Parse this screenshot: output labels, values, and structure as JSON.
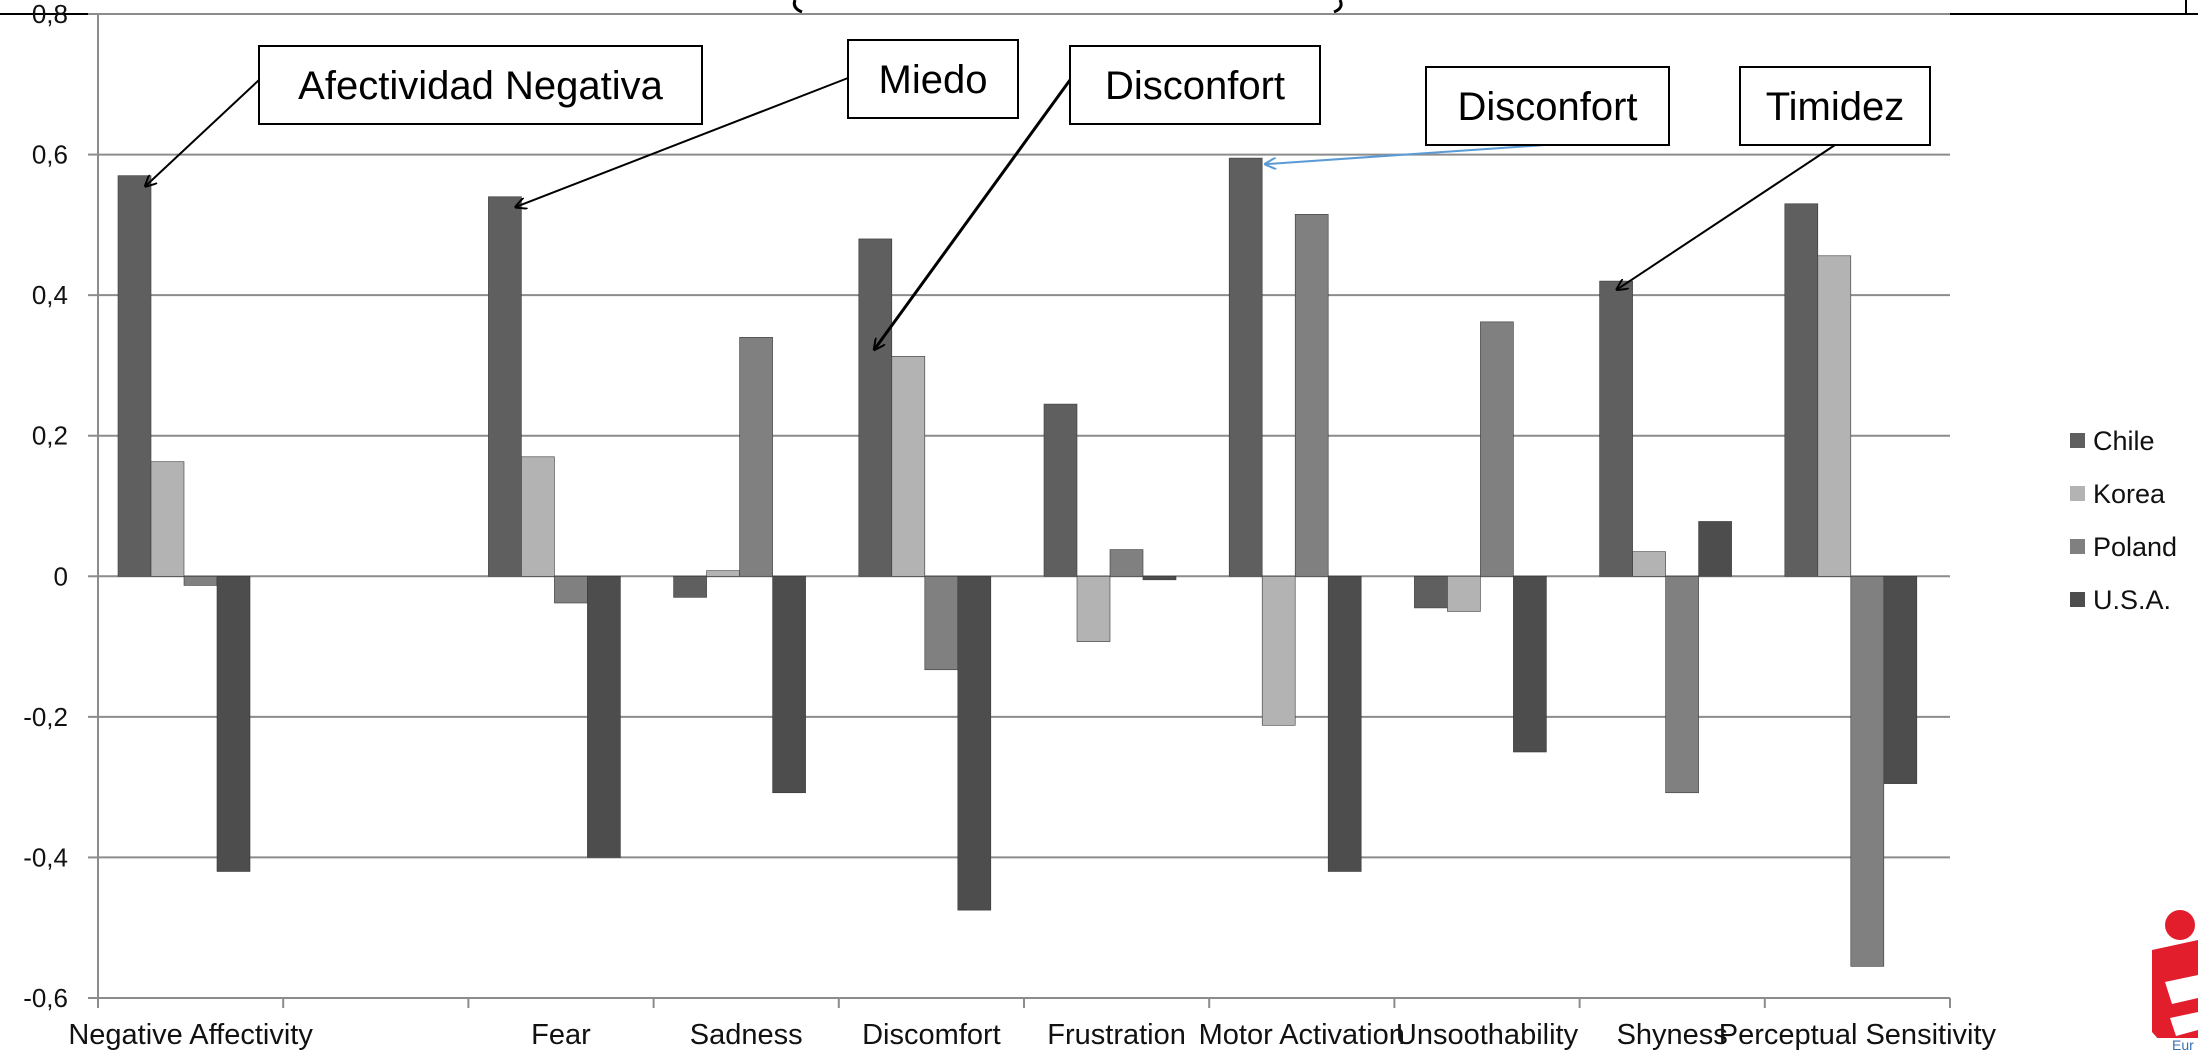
{
  "chart_data": {
    "type": "bar",
    "title": "",
    "xlabel": "",
    "ylabel": "",
    "ylim": [
      -0.6,
      0.8
    ],
    "yticks": [
      "-0,6",
      "-0,4",
      "-0,2",
      "0",
      "0,2",
      "0,4",
      "0,6",
      "0,8"
    ],
    "grid": true,
    "legend_position": "right",
    "categories": [
      "Negative Affectivity",
      "",
      "Fear",
      "Sadness",
      "Discomfort",
      "Frustration",
      "Motor Activation",
      "Unsoothability",
      "Shyness",
      "Perceptual Sensitivity"
    ],
    "series": [
      {
        "name": "Chile",
        "color": "#5f5f5f",
        "values": [
          0.57,
          null,
          0.54,
          -0.03,
          0.48,
          0.245,
          0.595,
          -0.045,
          0.42,
          0.53
        ]
      },
      {
        "name": "Korea",
        "color": "#b3b3b3",
        "values": [
          0.163,
          null,
          0.17,
          0.008,
          0.313,
          -0.093,
          -0.212,
          -0.05,
          0.035,
          0.456
        ]
      },
      {
        "name": "Poland",
        "color": "#808080",
        "values": [
          -0.013,
          null,
          -0.038,
          0.34,
          -0.133,
          0.038,
          0.515,
          0.362,
          -0.308,
          -0.555
        ]
      },
      {
        "name": "U.S.A.",
        "color": "#4d4d4d",
        "values": [
          -0.42,
          null,
          -0.4,
          -0.308,
          -0.475,
          -0.005,
          -0.42,
          -0.25,
          0.078,
          -0.295
        ]
      }
    ],
    "annotations": [
      {
        "text": "Afectividad Negativa",
        "target_category": "Negative Affectivity",
        "target_series": "Chile"
      },
      {
        "text": "Miedo",
        "target_category": "Fear",
        "target_series": "Chile"
      },
      {
        "text": "Disconfort",
        "target_category": "Discomfort",
        "target_series": "Chile"
      },
      {
        "text": "Disconfort",
        "target_category": "Motor Activation",
        "target_series": "Chile"
      },
      {
        "text": "Timidez",
        "target_category": "Shyness",
        "target_series": "Chile"
      }
    ]
  },
  "annotation_colors": {
    "default": "#000000",
    "motor": "#5b9bd5"
  },
  "logo": {
    "name": "logo-red-mark",
    "color": "#e31e2c"
  }
}
